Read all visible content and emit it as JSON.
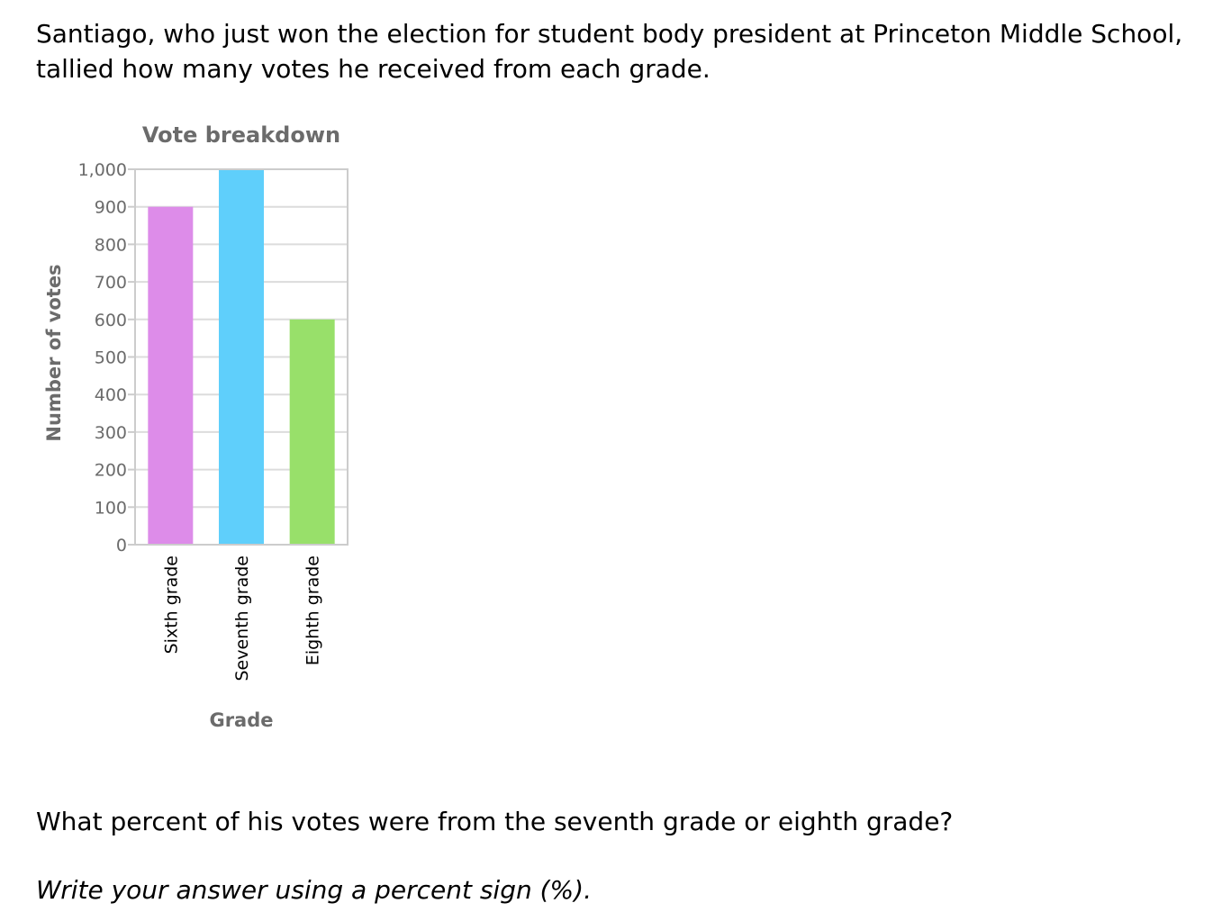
{
  "intro_text": "Santiago, who just won the election for student body president at Princeton Middle School, tallied how many votes he received from each grade.",
  "question": "What percent of his votes were from the seventh grade or eighth grade?",
  "instruction": "Write your answer using a percent sign (%).",
  "chart_data": {
    "type": "bar",
    "title": "Vote breakdown",
    "xlabel": "Grade",
    "ylabel": "Number of votes",
    "categories": [
      "Sixth grade",
      "Seventh grade",
      "Eighth grade"
    ],
    "values": [
      900,
      1000,
      600
    ],
    "colors": [
      "#dd8ce9",
      "#5fcffb",
      "#98e06a"
    ],
    "ylim": [
      0,
      1000
    ],
    "yticks": [
      0,
      100,
      200,
      300,
      400,
      500,
      600,
      700,
      800,
      900,
      1000
    ],
    "ytick_labels": [
      "0",
      "100",
      "200",
      "300",
      "400",
      "500",
      "600",
      "700",
      "800",
      "900",
      "1,000"
    ],
    "grid": true,
    "legend": "none"
  }
}
